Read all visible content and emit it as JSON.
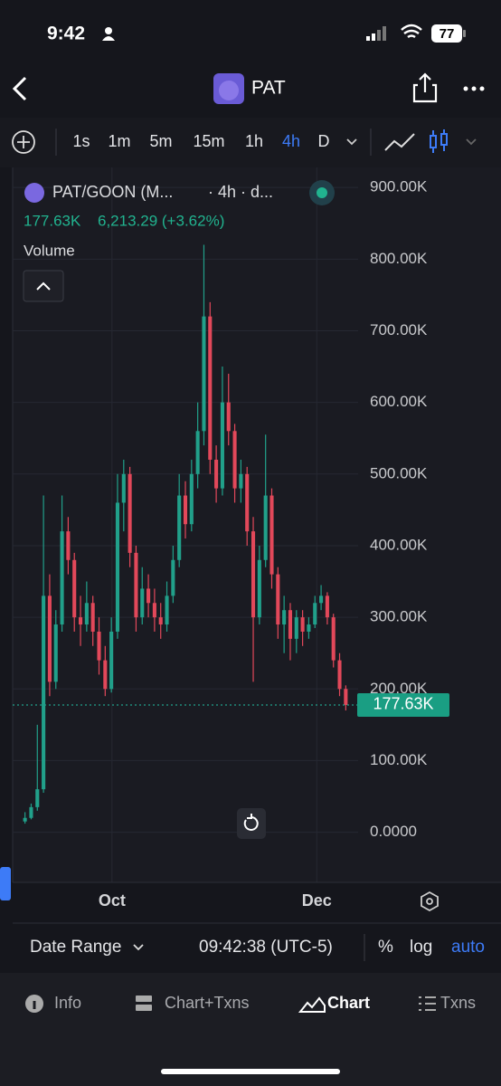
{
  "status_bar": {
    "time": "9:42",
    "battery": "77"
  },
  "header": {
    "title": "PAT"
  },
  "toolbar": {
    "intervals": [
      "1s",
      "1m",
      "5m",
      "15m",
      "1h",
      "4h",
      "D"
    ],
    "active_interval": 5
  },
  "chart_data": {
    "type": "candlestick",
    "legend": {
      "symbol": "PAT/GOON (M...",
      "meta": "· 4h · d...",
      "last": "177.63K",
      "change": "6,213.29 (+3.62%)",
      "volume_label": "Volume"
    },
    "open": [
      15000,
      20000,
      35000,
      60000,
      330000,
      210000,
      290000,
      420000,
      380000,
      300000,
      290000,
      320000,
      280000,
      240000,
      200000,
      280000,
      460000,
      500000,
      390000,
      300000,
      340000,
      320000,
      300000,
      290000,
      330000,
      380000,
      470000,
      430000,
      500000,
      560000,
      720000,
      520000,
      480000,
      600000,
      560000,
      480000,
      500000,
      420000,
      300000,
      380000,
      470000,
      360000,
      290000,
      310000,
      270000,
      300000,
      280000,
      290000,
      320000,
      330000,
      300000,
      240000,
      200000
    ],
    "high": [
      28000,
      40000,
      150000,
      470000,
      360000,
      310000,
      470000,
      440000,
      390000,
      330000,
      350000,
      330000,
      300000,
      260000,
      300000,
      500000,
      520000,
      510000,
      400000,
      370000,
      360000,
      340000,
      320000,
      350000,
      400000,
      500000,
      490000,
      520000,
      600000,
      820000,
      740000,
      540000,
      650000,
      640000,
      570000,
      520000,
      510000,
      440000,
      400000,
      555000,
      480000,
      370000,
      330000,
      320000,
      310000,
      310000,
      300000,
      330000,
      345000,
      335000,
      305000,
      250000,
      205000
    ],
    "low": [
      12000,
      18000,
      30000,
      55000,
      190000,
      200000,
      280000,
      360000,
      280000,
      260000,
      280000,
      260000,
      220000,
      190000,
      195000,
      270000,
      420000,
      370000,
      280000,
      290000,
      300000,
      280000,
      270000,
      280000,
      320000,
      370000,
      410000,
      420000,
      480000,
      540000,
      500000,
      460000,
      470000,
      540000,
      460000,
      460000,
      400000,
      210000,
      290000,
      370000,
      340000,
      270000,
      250000,
      240000,
      250000,
      260000,
      270000,
      285000,
      310000,
      290000,
      230000,
      190000,
      170000
    ],
    "close": [
      20000,
      35000,
      60000,
      330000,
      210000,
      290000,
      420000,
      380000,
      300000,
      290000,
      320000,
      280000,
      240000,
      200000,
      280000,
      460000,
      500000,
      390000,
      300000,
      340000,
      320000,
      300000,
      290000,
      330000,
      380000,
      470000,
      430000,
      500000,
      560000,
      720000,
      520000,
      480000,
      600000,
      560000,
      480000,
      500000,
      420000,
      300000,
      380000,
      470000,
      360000,
      290000,
      310000,
      270000,
      300000,
      280000,
      290000,
      320000,
      330000,
      300000,
      240000,
      200000,
      177630
    ],
    "up_color": "#21a08a",
    "down_color": "#e2485a",
    "ylim": [
      -70000,
      928000
    ],
    "yticks": [
      {
        "value": 900000,
        "label": "900.00K"
      },
      {
        "value": 800000,
        "label": "800.00K"
      },
      {
        "value": 700000,
        "label": "700.00K"
      },
      {
        "value": 600000,
        "label": "600.00K"
      },
      {
        "value": 500000,
        "label": "500.00K"
      },
      {
        "value": 400000,
        "label": "400.00K"
      },
      {
        "value": 300000,
        "label": "300.00K"
      },
      {
        "value": 200000,
        "label": "200.00K"
      },
      {
        "value": 100000,
        "label": "100.00K"
      },
      {
        "value": 0,
        "label": "0.0000"
      }
    ],
    "xlim": [
      -2,
      54
    ],
    "xticks": [
      {
        "value": 14.1,
        "label": "Oct"
      },
      {
        "value": 47.3,
        "label": "Dec"
      }
    ],
    "last_price": {
      "value": 177630,
      "label": "177.63K"
    },
    "grid": true
  },
  "bottom_bar": {
    "date_range": "Date Range",
    "time": "09:42:38 (UTC-5)",
    "options": [
      "%",
      "log",
      "auto"
    ],
    "active_option": 2
  },
  "tabs": [
    "Info",
    "Chart+Txns",
    "Chart",
    "Txns"
  ],
  "active_tab": 2
}
